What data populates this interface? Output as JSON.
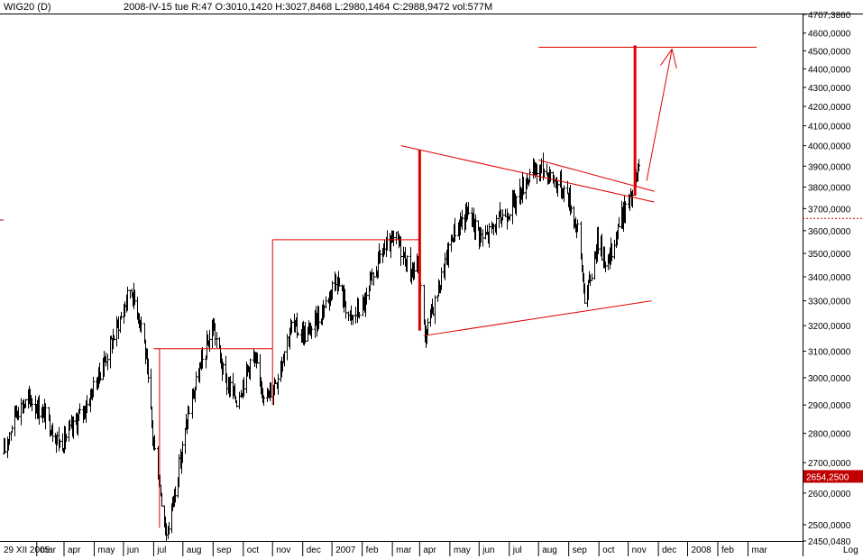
{
  "header": {
    "symbol": "WIG20 (D)",
    "info": "2008-IV-15  tue   R:47 O:3010,1420 H:3027,8468 L:2980,1464 C:2988,9472 vol:577M"
  },
  "scale_label": "Log",
  "chart_data": {
    "type": "candlestick",
    "title": "WIG20 (D)",
    "x_tick_labels": [
      "29 XII 2005",
      "mar",
      "apr",
      "may",
      "jun",
      "jul",
      "aug",
      "sep",
      "oct",
      "nov",
      "dec",
      "2007",
      "feb",
      "mar",
      "apr",
      "may",
      "jun",
      "jul",
      "aug",
      "sep",
      "oct",
      "nov",
      "dec",
      "2008",
      "feb",
      "mar"
    ],
    "y_tick_labels": [
      "4707,3860",
      "4600,0000",
      "4500,0000",
      "4400,0000",
      "4300,0000",
      "4200,0000",
      "4100,0000",
      "4000,0000",
      "3900,0000",
      "3800,0000",
      "3700,0000",
      "3600,0000",
      "3500,0000",
      "3400,0000",
      "3300,0000",
      "3200,0000",
      "3100,0000",
      "3000,0000",
      "2900,0000",
      "2800,0000",
      "2700,0000",
      "2600,0000",
      "2500,0000",
      "2450,0480"
    ],
    "y_axis": {
      "scale": "log",
      "range": [
        2450.048,
        4707.386
      ]
    },
    "current_price_label": "2654,2500",
    "current_price": 2654.25,
    "reference_level": 3655,
    "price_path": [
      [
        "2005-12-29",
        2730
      ],
      [
        "2006-01-10",
        2880
      ],
      [
        "2006-01-25",
        2920
      ],
      [
        "2006-02-10",
        2860
      ],
      [
        "2006-02-25",
        2760
      ],
      [
        "2006-03-10",
        2820
      ],
      [
        "2006-03-25",
        2910
      ],
      [
        "2006-04-10",
        3050
      ],
      [
        "2006-04-25",
        3200
      ],
      [
        "2006-05-08",
        3350
      ],
      [
        "2006-05-20",
        3200
      ],
      [
        "2006-06-01",
        2760
      ],
      [
        "2006-06-14",
        2470
      ],
      [
        "2006-06-25",
        2650
      ],
      [
        "2006-07-08",
        2900
      ],
      [
        "2006-07-20",
        3050
      ],
      [
        "2006-08-01",
        3200
      ],
      [
        "2006-08-12",
        3000
      ],
      [
        "2006-08-25",
        2920
      ],
      [
        "2006-09-10",
        3080
      ],
      [
        "2006-09-25",
        2920
      ],
      [
        "2006-10-05",
        3000
      ],
      [
        "2006-10-20",
        3200
      ],
      [
        "2006-11-05",
        3160
      ],
      [
        "2006-11-20",
        3250
      ],
      [
        "2006-12-05",
        3400
      ],
      [
        "2006-12-20",
        3220
      ],
      [
        "2007-01-05",
        3300
      ],
      [
        "2007-01-20",
        3500
      ],
      [
        "2007-02-05",
        3560
      ],
      [
        "2007-02-20",
        3420
      ],
      [
        "2007-02-28",
        3450
      ],
      [
        "2007-03-06",
        3150
      ],
      [
        "2007-03-20",
        3350
      ],
      [
        "2007-04-05",
        3600
      ],
      [
        "2007-04-20",
        3680
      ],
      [
        "2007-05-05",
        3560
      ],
      [
        "2007-05-20",
        3640
      ],
      [
        "2007-06-05",
        3720
      ],
      [
        "2007-06-20",
        3850
      ],
      [
        "2007-07-05",
        3890
      ],
      [
        "2007-07-20",
        3820
      ],
      [
        "2007-07-30",
        3770
      ],
      [
        "2007-08-10",
        3600
      ],
      [
        "2007-08-18",
        3280
      ],
      [
        "2007-08-30",
        3560
      ],
      [
        "2007-09-10",
        3450
      ],
      [
        "2007-09-22",
        3650
      ],
      [
        "2007-10-05",
        3760
      ],
      [
        "2007-10-14",
        3920
      ]
    ],
    "annotations": {
      "horizontal_levels": [
        {
          "from": "2006-06-01",
          "to": "2006-10-01",
          "price": 3110
        },
        {
          "from": "2006-10-01",
          "to": "2007-02-28",
          "price": 3560
        },
        {
          "from": "2007-07-01",
          "to": "2008-02-10",
          "price": 4520
        }
      ],
      "vertical_ranges": [
        {
          "date": "2006-06-07",
          "low": 2490,
          "high": 3110,
          "bold": false
        },
        {
          "date": "2006-10-01",
          "low": 2900,
          "high": 3560,
          "bold": false
        },
        {
          "date": "2007-03-01",
          "low": 3180,
          "high": 3980,
          "bold": true
        },
        {
          "date": "2007-10-08",
          "low": 3760,
          "high": 4530,
          "bold": true
        }
      ],
      "trend_lines": [
        {
          "start": [
            "2007-02-10",
            4000
          ],
          "end": [
            "2007-10-28",
            3730
          ]
        },
        {
          "start": [
            "2007-03-05",
            3160
          ],
          "end": [
            "2007-10-25",
            3300
          ]
        },
        {
          "start": [
            "2007-07-01",
            3930
          ],
          "end": [
            "2007-10-28",
            3780
          ]
        }
      ],
      "arrow": {
        "start": [
          "2007-10-20",
          3830
        ],
        "end": [
          "2007-11-15",
          4510
        ]
      }
    }
  }
}
